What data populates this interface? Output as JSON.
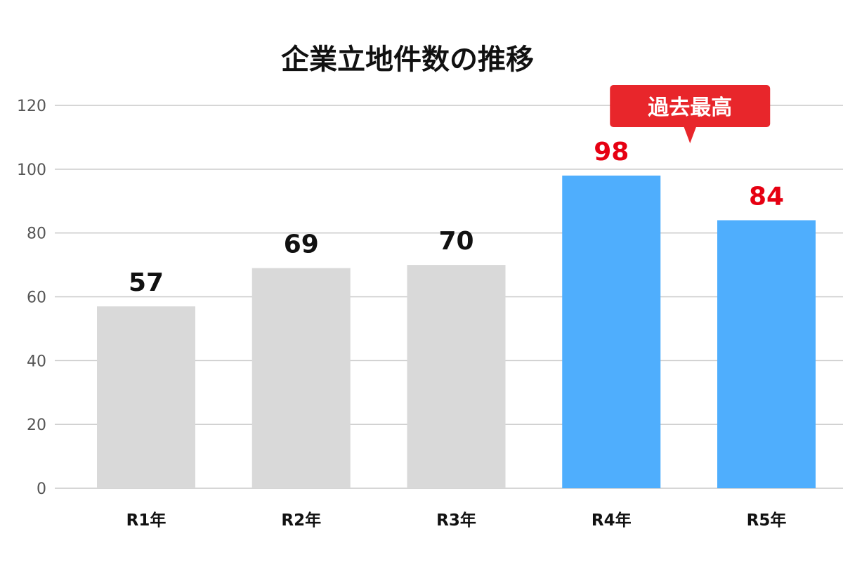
{
  "chart_data": {
    "type": "bar",
    "title": "企業立地件数の推移",
    "categories": [
      "R1年",
      "R2年",
      "R3年",
      "R4年",
      "R5年"
    ],
    "values": [
      57,
      69,
      70,
      98,
      84
    ],
    "ylim": [
      0,
      120
    ],
    "yticks": [
      0,
      20,
      40,
      60,
      80,
      100,
      120
    ],
    "grid": true,
    "highlight": [
      false,
      false,
      false,
      true,
      true
    ],
    "colors": {
      "bar_default": "#d9d9d9",
      "bar_highlight": "#4faefd",
      "label_default": "#111111",
      "label_highlight": "#e60012",
      "callout_bg": "#e8262b",
      "grid": "#c8c8c8"
    },
    "annotation": {
      "text": "過去最高",
      "target_category": "R4年"
    }
  }
}
